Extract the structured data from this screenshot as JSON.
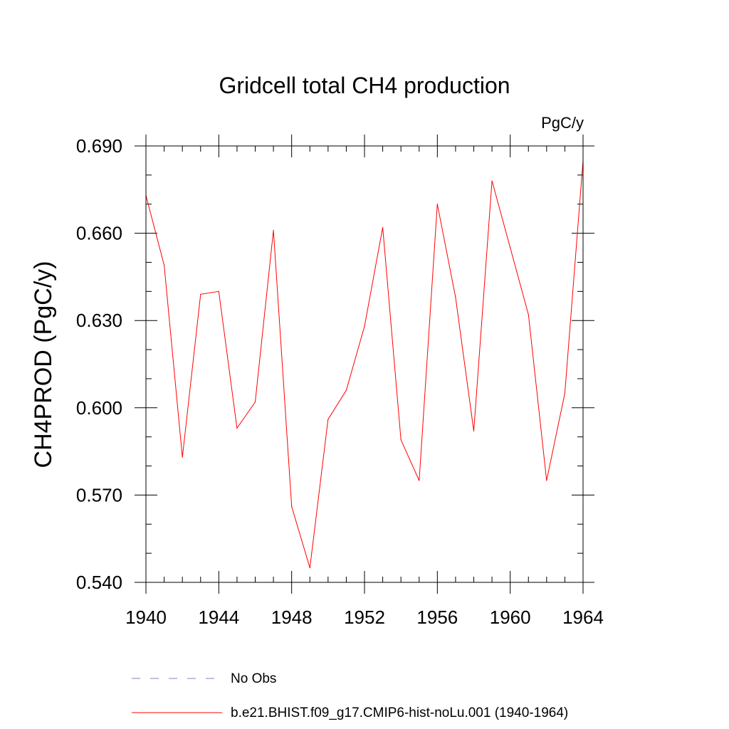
{
  "chart_data": {
    "type": "line",
    "title": "Gridcell total CH4 production",
    "units": "PgC/y",
    "ylabel": "CH4PROD  (PgC/y)",
    "xlabel": "",
    "xlim": [
      1940,
      1964
    ],
    "ylim": [
      0.54,
      0.69
    ],
    "xticks": [
      1940,
      1944,
      1948,
      1952,
      1956,
      1960,
      1964
    ],
    "yticks": [
      0.54,
      0.57,
      0.6,
      0.63,
      0.66,
      0.69
    ],
    "ytick_labels": [
      "0.540",
      "0.570",
      "0.600",
      "0.630",
      "0.660",
      "0.690"
    ],
    "grid": false,
    "legend_position": "bottom",
    "series": [
      {
        "name": "b.e21.BHIST.f09_g17.CMIP6-hist-noLu.001 (1940-1964)",
        "color": "#ff0000",
        "style": "solid",
        "x": [
          1940,
          1941,
          1942,
          1943,
          1944,
          1945,
          1946,
          1947,
          1948,
          1949,
          1950,
          1951,
          1952,
          1953,
          1954,
          1955,
          1956,
          1957,
          1958,
          1959,
          1960,
          1961,
          1962,
          1963,
          1964
        ],
        "y": [
          0.673,
          0.649,
          0.583,
          0.639,
          0.64,
          0.593,
          0.602,
          0.661,
          0.566,
          0.545,
          0.596,
          0.606,
          0.628,
          0.662,
          0.589,
          0.575,
          0.67,
          0.638,
          0.592,
          0.678,
          0.655,
          0.632,
          0.575,
          0.605,
          0.685
        ]
      }
    ],
    "legend": [
      {
        "label": "No Obs",
        "color": "#8080c0",
        "style": "dashed"
      },
      {
        "label": "b.e21.BHIST.f09_g17.CMIP6-hist-noLu.001 (1940-1964)",
        "color": "#ff0000",
        "style": "solid"
      }
    ]
  }
}
